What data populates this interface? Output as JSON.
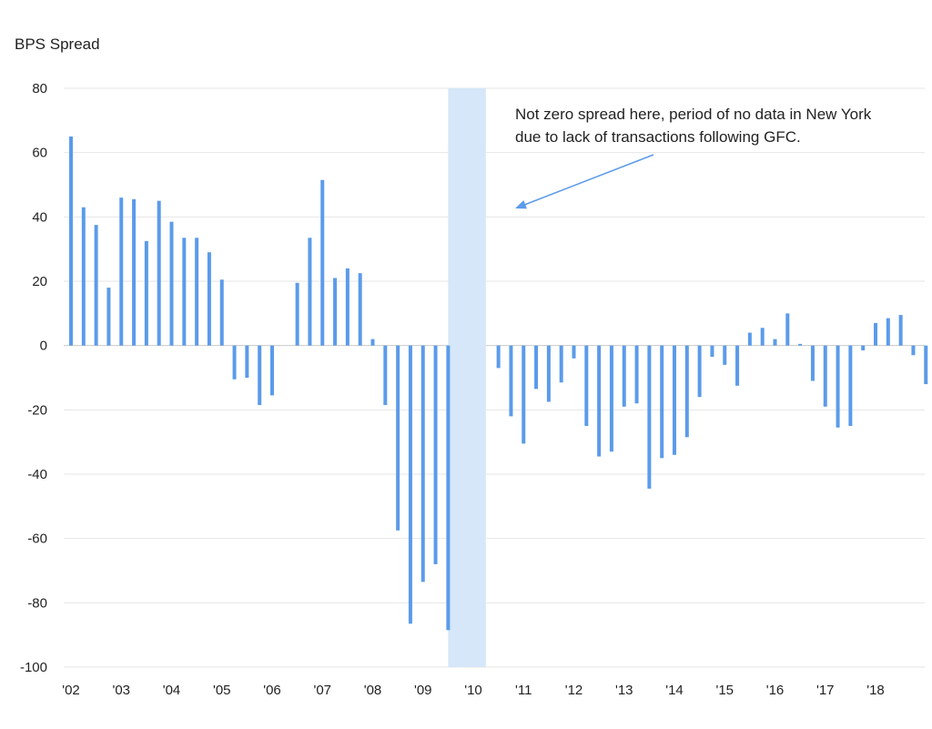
{
  "chart_data": {
    "type": "bar",
    "title": "",
    "ylabel": "BPS Spread",
    "xlabel": "",
    "ylim": [
      -100,
      80
    ],
    "y_ticks": [
      80,
      60,
      40,
      20,
      0,
      -20,
      -40,
      -60,
      -80,
      -100
    ],
    "grid": "horizontal",
    "x_tick_labels": [
      "'02",
      "'03",
      "'04",
      "'05",
      "'06",
      "'07",
      "'08",
      "'09",
      "'10",
      "'11",
      "'12",
      "'13",
      "'14",
      "'15",
      "'16",
      "'17",
      "'18"
    ],
    "x_start_year": 2002,
    "periods_per_year": 4,
    "series": [
      {
        "color": "#5b9bea",
        "values": [
          65,
          43,
          37.5,
          18,
          46,
          45.5,
          32.5,
          45,
          38.5,
          33.5,
          33.5,
          29,
          20.5,
          -10.5,
          -10,
          -18.5,
          -15.5,
          null,
          19.5,
          33.5,
          51.5,
          21,
          24,
          22.5,
          2,
          -18.5,
          -57.5,
          -86.5,
          -73.5,
          -68,
          -88.5,
          null,
          null,
          null,
          -7,
          -22,
          -30.5,
          -13.5,
          -17.5,
          -11.5,
          -4,
          -25,
          -34.5,
          -33,
          -19,
          -18,
          -44.5,
          -35,
          -34,
          -28.5,
          -16,
          -3.5,
          -6,
          -12.5,
          4,
          5.5,
          2,
          10,
          0.5,
          -11,
          -19,
          -25.5,
          -25,
          -1.5,
          7,
          8.5,
          9.5,
          -3,
          -12
        ]
      }
    ],
    "highlight_band": {
      "from_year": 2009.5,
      "to_year": 2010.25,
      "color": "#d5e7f8"
    },
    "annotation": {
      "lines": [
        "Not zero spread here, period of no data in New York",
        "due to lack of transactions following GFC."
      ],
      "arrow_color": "#5b9bea"
    }
  }
}
